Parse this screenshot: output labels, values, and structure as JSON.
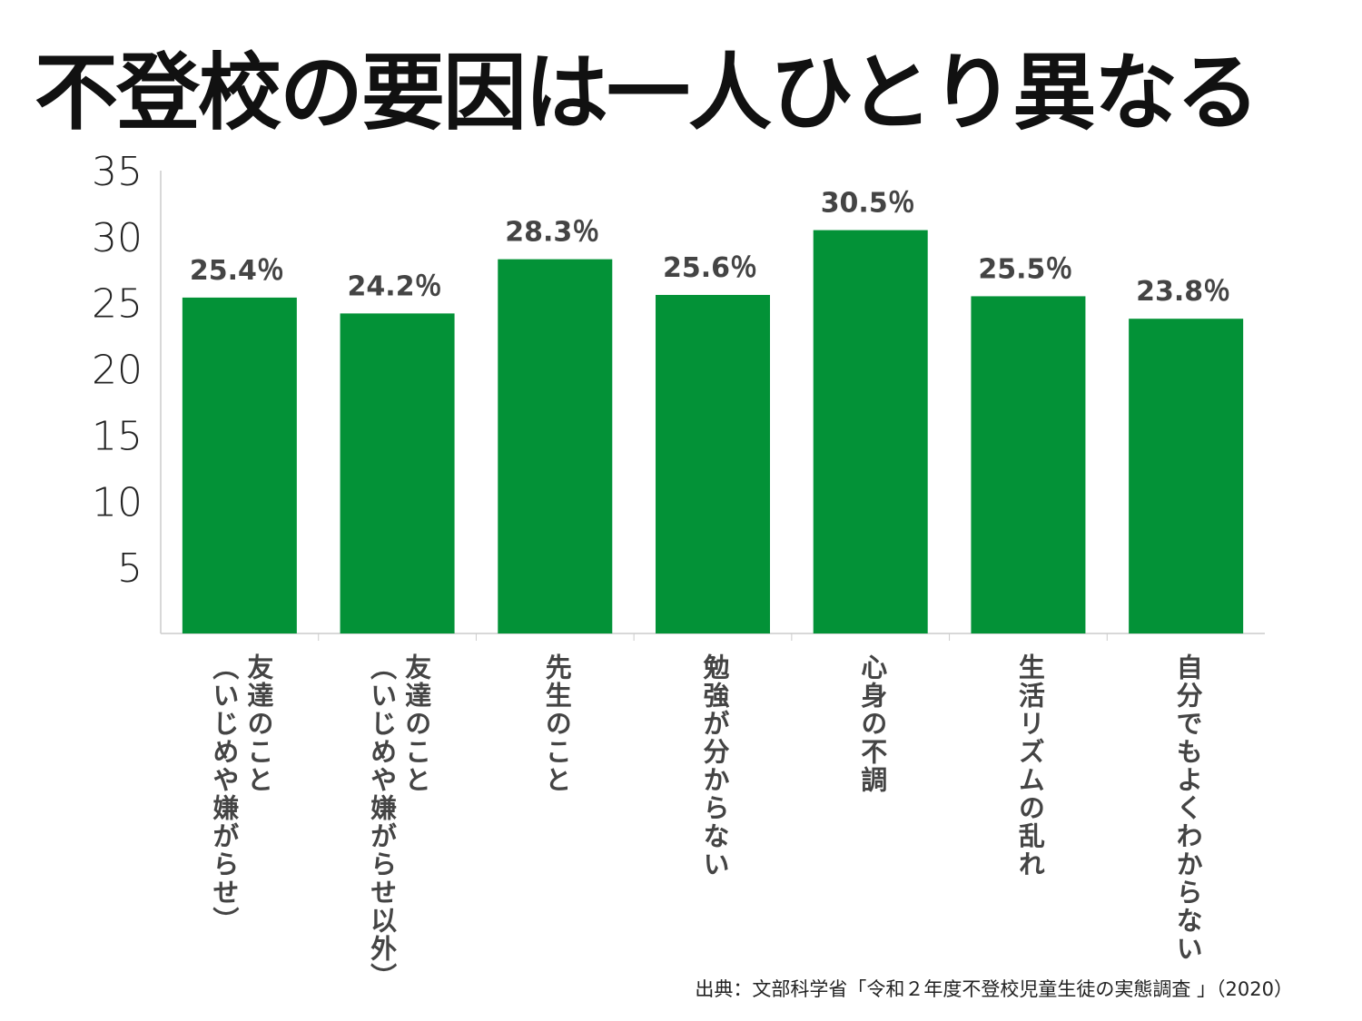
{
  "title": {
    "part1": "不登校の要因は",
    "highlight": "一人ひとり異なる"
  },
  "colors": {
    "bar": "#039237",
    "highlight": "#ffff00",
    "axis": "#cccccc"
  },
  "chart_data": {
    "type": "bar",
    "title": "不登校の要因は一人ひとり異なる",
    "categories": [
      [
        "友達のこと",
        "（いじめや嫌がらせ）"
      ],
      [
        "友達のこと",
        "（いじめや嫌がらせ以外）"
      ],
      [
        "先生のこと"
      ],
      [
        "勉強が分からない"
      ],
      [
        "心身の不調"
      ],
      [
        "生活リズムの乱れ"
      ],
      [
        "自分でもよくわからない"
      ]
    ],
    "values": [
      25.4,
      24.2,
      28.3,
      25.6,
      30.5,
      25.5,
      23.8
    ],
    "value_labels": [
      "25.4％",
      "24.2％",
      "28.3％",
      "25.6％",
      "30.5％",
      "25.5％",
      "23.8％"
    ],
    "ylim": [
      0,
      35
    ],
    "yticks": [
      "5",
      "10",
      "15",
      "20",
      "25",
      "30",
      "35"
    ],
    "xlabel": "",
    "ylabel": "",
    "grid": false
  },
  "source": "出典：文部科学省「令和２年度不登校児童生徒の実態調査 」（2020）"
}
